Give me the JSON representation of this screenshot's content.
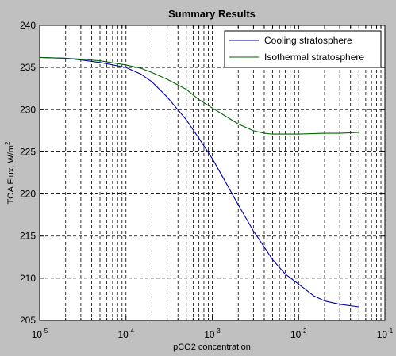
{
  "chart_data": {
    "type": "line",
    "title": "Summary Results",
    "xlabel": "pCO2 concentration",
    "ylabel": "TOA Flux, W/m",
    "ylabel_sup": "2",
    "x_scale": "log",
    "xlim": [
      1e-05,
      0.1
    ],
    "ylim": [
      205,
      240
    ],
    "grid": true,
    "legend_position": "top-right",
    "x_tick_labels": [
      {
        "value": 1e-05,
        "base": "10",
        "exp": "-5"
      },
      {
        "value": 0.0001,
        "base": "10",
        "exp": "-4"
      },
      {
        "value": 0.001,
        "base": "10",
        "exp": "-3"
      },
      {
        "value": 0.01,
        "base": "10",
        "exp": "-2"
      },
      {
        "value": 0.1,
        "base": "10",
        "exp": "-1"
      }
    ],
    "y_ticks": [
      205,
      210,
      215,
      220,
      225,
      230,
      235,
      240
    ],
    "series": [
      {
        "name": "Cooling stratosphere",
        "color": "#0000aa",
        "x": [
          1e-05,
          2e-05,
          3e-05,
          5e-05,
          0.0001,
          0.00015,
          0.0002,
          0.0003,
          0.0005,
          0.0007,
          0.001,
          0.0015,
          0.002,
          0.003,
          0.005,
          0.007,
          0.01,
          0.015,
          0.02,
          0.03,
          0.05
        ],
        "y": [
          236.2,
          236.1,
          235.9,
          235.6,
          235.0,
          234.2,
          233.3,
          231.5,
          228.8,
          226.6,
          224.2,
          221.0,
          218.7,
          215.6,
          212.2,
          210.5,
          209.3,
          207.9,
          207.3,
          206.9,
          206.6
        ]
      },
      {
        "name": "Isothermal stratosphere",
        "color": "#006600",
        "x": [
          1e-05,
          2e-05,
          3e-05,
          5e-05,
          0.0001,
          0.00015,
          0.0002,
          0.0003,
          0.0005,
          0.0007,
          0.001,
          0.0015,
          0.002,
          0.003,
          0.004,
          0.005,
          0.007,
          0.01,
          0.02,
          0.03,
          0.05
        ],
        "y": [
          236.2,
          236.1,
          236.0,
          235.8,
          235.3,
          234.9,
          234.4,
          233.6,
          232.4,
          231.2,
          230.2,
          229.1,
          228.3,
          227.5,
          227.2,
          227.1,
          227.1,
          227.1,
          227.2,
          227.2,
          227.3
        ]
      }
    ]
  }
}
